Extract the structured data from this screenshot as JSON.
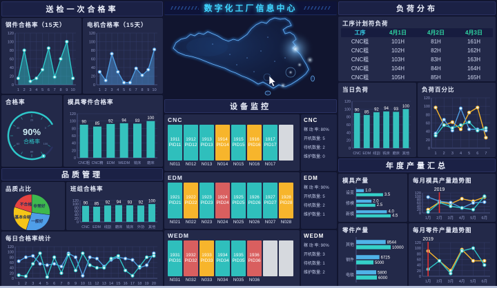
{
  "title": "数字化工厂信息中心",
  "colors": {
    "teal": "#2EC7C9",
    "blue": "#4E9BE0",
    "yellow": "#F8B62D",
    "red": "#D9605C",
    "grid": "#343c6a",
    "tick": "#8f98c6",
    "axis": "#4a5384",
    "bar": "#35C2BE",
    "hbar1": "#4FB3E8",
    "hbar2": "#35D0C8",
    "vline": "#E03131"
  },
  "left": {
    "header": "送检一次合格率",
    "steel": {
      "label": "钢件合格率（15天）",
      "chart": {
        "type": "line",
        "x": [
          "1",
          "2",
          "3",
          "4",
          "5",
          "6",
          "7",
          "8",
          "9",
          "10"
        ],
        "ylim": [
          0,
          120
        ],
        "ystep": 20,
        "series": [
          {
            "color": "#2EC7C9",
            "area": true,
            "values": [
              15,
              80,
              8,
              15,
              35,
              85,
              18,
              60,
              100,
              15
            ]
          }
        ]
      }
    },
    "motor": {
      "label": "电机合格率（15天）",
      "chart": {
        "type": "line",
        "x": [
          "1",
          "2",
          "3",
          "4",
          "5",
          "6",
          "7",
          "8",
          "9",
          "10"
        ],
        "ylim": [
          0,
          120
        ],
        "ystep": 20,
        "series": [
          {
            "color": "#4E9BE0",
            "area": true,
            "values": [
              30,
              10,
              72,
              30,
              5,
              5,
              38,
              22,
              35,
              82
            ]
          }
        ]
      }
    },
    "gauge_panel": {
      "label": "合格率",
      "value": "90%",
      "caption": "合格率",
      "chart": {
        "type": "gauge",
        "percent": 90
      }
    },
    "mold_parts": {
      "label": "模具零件合格率",
      "chart": {
        "type": "bar",
        "categories": [
          "CNC粗",
          "CNC精",
          "EDM",
          "WEDM",
          "铣床",
          "磨床"
        ],
        "values": [
          90,
          85,
          92,
          94,
          93,
          100
        ],
        "ylim": [
          0,
          120
        ],
        "ystep": 20
      }
    },
    "quality_header": "品质管理",
    "quality_pie": {
      "label": "品质占比",
      "chart": {
        "type": "pie",
        "slices": [
          {
            "label": "非常好",
            "value": 27,
            "color": "#3EB84E"
          },
          {
            "label": "一般好",
            "value": 28,
            "color": "#4F9EE8"
          },
          {
            "label": "基本合格",
            "value": 25,
            "color": "#F5C518"
          },
          {
            "label": "不合格",
            "value": 20,
            "color": "#E64340"
          }
        ]
      }
    },
    "team_rate": {
      "label": "班组合格率",
      "chart": {
        "type": "bar",
        "categories": [
          "CNC",
          "EDM",
          "线割",
          "磨床",
          "铣床",
          "外协",
          "其他"
        ],
        "values": [
          90,
          85,
          92,
          94,
          93,
          92,
          100
        ],
        "ylim": [
          0,
          120
        ],
        "ystep": 20
      }
    },
    "daily": {
      "label": "每日合格率统计",
      "chart": {
        "type": "line",
        "x": [
          "1",
          "2",
          "3",
          "4",
          "5",
          "6",
          "7",
          "8",
          "9",
          "10",
          "11",
          "12",
          "13",
          "14",
          "15",
          "16",
          "17",
          "18",
          "19",
          "20"
        ],
        "ylim": [
          0,
          120
        ],
        "ystep": 20,
        "series": [
          {
            "color": "#4E9BE0",
            "values": [
              65,
              80,
              85,
              55,
              50,
              55,
              45,
              95,
              80,
              10,
              80,
              75,
              45,
              70,
              80,
              75,
              70,
              40,
              50,
              95
            ]
          },
          {
            "color": "#2EC7C9",
            "values": [
              12,
              8,
              55,
              95,
              5,
              80,
              20,
              90,
              30,
              95,
              50,
              40,
              40,
              75,
              85,
              30,
              10,
              45,
              80,
              85
            ]
          }
        ]
      }
    }
  },
  "center": {
    "monitor_header": "设备监控",
    "groups": [
      {
        "name": "CNC",
        "stats": [
          "稼 动 率: 80%",
          "开机数量: 5",
          "待机数量: 2",
          "维护数量: 0"
        ],
        "blocks": [
          {
            "id": "1911",
            "pid": "PID11",
            "status": "run",
            "label": "N011"
          },
          {
            "id": "1912",
            "pid": "PID12",
            "status": "run",
            "label": "N012"
          },
          {
            "id": "1913",
            "pid": "PID13",
            "status": "run",
            "label": "N013"
          },
          {
            "id": "1914",
            "pid": "PID14",
            "status": "standby",
            "label": "N014"
          },
          {
            "id": "1915",
            "pid": "PID15",
            "status": "run",
            "label": "N015"
          },
          {
            "id": "1916",
            "pid": "PID16",
            "status": "standby",
            "label": "N016"
          },
          {
            "id": "1917",
            "pid": "PID17",
            "status": "run",
            "label": "N017"
          },
          {
            "id": "",
            "pid": "",
            "status": "off",
            "label": ""
          }
        ]
      },
      {
        "name": "EDM",
        "stats": [
          "稼 动 率: 90%",
          "开机数量: 5",
          "待机数量: 2",
          "维护数量: 1"
        ],
        "blocks": [
          {
            "id": "1921",
            "pid": "PID21",
            "status": "run",
            "label": "N021"
          },
          {
            "id": "1922",
            "pid": "PID22",
            "status": "standby",
            "label": "N022"
          },
          {
            "id": "1923",
            "pid": "PID23",
            "status": "run",
            "label": "N023"
          },
          {
            "id": "1924",
            "pid": "PID24",
            "status": "fault",
            "label": "N024"
          },
          {
            "id": "1925",
            "pid": "PID25",
            "status": "run",
            "label": "N025"
          },
          {
            "id": "1926",
            "pid": "PID26",
            "status": "run",
            "label": "N026"
          },
          {
            "id": "1927",
            "pid": "PID27",
            "status": "run",
            "label": "N027"
          },
          {
            "id": "1928",
            "pid": "PID28",
            "status": "standby",
            "label": "N028"
          }
        ]
      },
      {
        "name": "WEDM",
        "stats": [
          "稼 动 率: 90%",
          "开机数量: 3",
          "待机数量: 1",
          "维护数量: 2"
        ],
        "blocks": [
          {
            "id": "1931",
            "pid": "PID31",
            "status": "run",
            "label": "N031"
          },
          {
            "id": "1932",
            "pid": "PID32",
            "status": "fault",
            "label": "N032"
          },
          {
            "id": "1933",
            "pid": "PID33",
            "status": "standby",
            "label": "N033"
          },
          {
            "id": "1934",
            "pid": "PID34",
            "status": "run",
            "label": "N034"
          },
          {
            "id": "1935",
            "pid": "PID35",
            "status": "run",
            "label": "N035"
          },
          {
            "id": "1936",
            "pid": "PID36",
            "status": "fault",
            "label": "N036"
          },
          {
            "id": "",
            "pid": "",
            "status": "off",
            "label": ""
          },
          {
            "id": "",
            "pid": "",
            "status": "off",
            "label": ""
          }
        ]
      }
    ]
  },
  "right": {
    "header": "负荷分布",
    "plan_table": {
      "label": "工序计划符负荷",
      "headers": [
        "工序",
        "4月1日",
        "4月2日",
        "4月3日"
      ],
      "rows": [
        [
          "CNC粗",
          "101H",
          "81H",
          "161H"
        ],
        [
          "CNC粗",
          "102H",
          "82H",
          "162H"
        ],
        [
          "CNC粗",
          "103H",
          "83H",
          "163H"
        ],
        [
          "CNC粗",
          "104H",
          "84H",
          "164H"
        ],
        [
          "CNC粗",
          "105H",
          "85H",
          "165H"
        ]
      ]
    },
    "today_load": {
      "label": "当日负荷",
      "chart": {
        "type": "bar",
        "categories": [
          "CNC",
          "EDM",
          "线割",
          "铣床",
          "磨床",
          "其他"
        ],
        "values": [
          90,
          85,
          92,
          94,
          93,
          100
        ],
        "ylim": [
          0,
          120
        ],
        "ystep": 20
      }
    },
    "load_pct": {
      "label": "负荷百分比",
      "chart": {
        "type": "line",
        "x": [
          "1",
          "2",
          "3",
          "4",
          "5",
          "6",
          "7"
        ],
        "ylim": [
          0,
          120
        ],
        "ystep": 20,
        "series": [
          {
            "color": "#F8B62D",
            "values": [
              97,
              55,
              62,
              45,
              85,
              97,
              25
            ]
          },
          {
            "color": "#4E9BE0",
            "values": [
              35,
              68,
              42,
              95,
              45,
              45,
              42
            ]
          },
          {
            "color": "#2EC7C9",
            "values": [
              30,
              55,
              48,
              55,
              62,
              42,
              48
            ]
          }
        ]
      }
    },
    "annual_header": "年度产量汇总",
    "mold_output": {
      "label": "模具产量",
      "chart": {
        "type": "hbar",
        "categories": [
          "设变",
          "修模",
          "新模"
        ],
        "series": [
          {
            "color": "#4FB3E8",
            "values": [
              1.0,
              2.0,
              4.0
            ],
            "labels": [
              "1.0",
              "2.0",
              "4.0"
            ]
          },
          {
            "color": "#35D0C8",
            "values": [
              3.5,
              2.5,
              4.5
            ],
            "labels": [
              "3.5",
              "2.5",
              "4.5"
            ]
          }
        ]
      }
    },
    "mold_trend": {
      "label": "每月模具产量趋势图",
      "chart": {
        "type": "line",
        "x": [
          "1月",
          "2月",
          "3月",
          "4月",
          "5月",
          "6月"
        ],
        "ylim": [
          0,
          120
        ],
        "ystep": 20,
        "vline": 1,
        "vline_label": "2019",
        "series": [
          {
            "color": "#F8B62D",
            "values": [
              20,
              65,
              55,
              85,
              70,
              95
            ]
          },
          {
            "color": "#4E9BE0",
            "values": [
              95,
              70,
              62,
              30,
              60,
              65
            ]
          },
          {
            "color": "#2EC7C9",
            "values": [
              5,
              62,
              40,
              30,
              20,
              100
            ]
          }
        ]
      }
    },
    "parts_output": {
      "label": "零件产量",
      "chart": {
        "type": "hbar",
        "categories": [
          "其他",
          "钢件",
          "电极"
        ],
        "series": [
          {
            "color": "#4FB3E8",
            "values": [
              8544,
              6725,
              5800
            ],
            "labels": [
              "8544",
              "6725",
              "5800"
            ]
          },
          {
            "color": "#35D0C8",
            "values": [
              10000,
              5000,
              6000
            ],
            "labels": [
              "10000",
              "5000",
              "6000"
            ]
          }
        ]
      }
    },
    "parts_trend": {
      "label": "每月零件产量趋势图",
      "chart": {
        "type": "line",
        "x": [
          "1月",
          "2月",
          "3月",
          "4月",
          "5月",
          "6月"
        ],
        "ylim": [
          0,
          120
        ],
        "ystep": 20,
        "vline": 0,
        "vline_label": "2019",
        "series": [
          {
            "color": "#F8B62D",
            "values": [
              90,
              55,
              20,
              95,
              55,
              55
            ]
          },
          {
            "color": "#2EC7C9",
            "values": [
              25,
              55,
              10,
              90,
              100,
              40
            ]
          }
        ]
      }
    }
  }
}
